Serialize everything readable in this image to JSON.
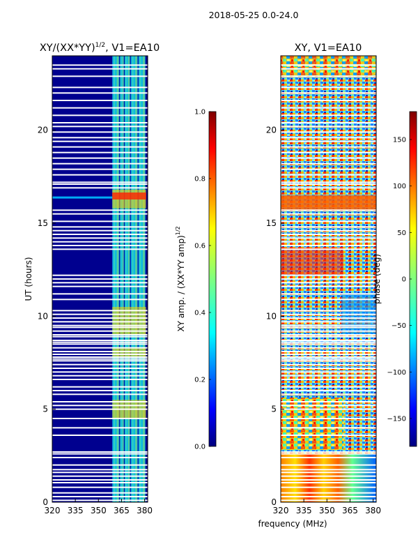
{
  "suptitle": "2018-05-25 0.0-24.0",
  "colors": {
    "background": "#000080",
    "jet": [
      "#00007f",
      "#0000ff",
      "#007fff",
      "#00ffff",
      "#7fff7f",
      "#ffff00",
      "#ff7f00",
      "#ff0000",
      "#7f0000"
    ]
  },
  "chart_data": [
    {
      "type": "heatmap",
      "title": "XY/(XX*YY)^1/2, V1=EA10",
      "title_main": "XY/(XX*YY)",
      "title_sup": "1/2",
      "title_suffix": ", V1=EA10",
      "xlabel": "",
      "ylabel": "UT (hours)",
      "xlim": [
        320,
        382
      ],
      "ylim": [
        0,
        24
      ],
      "xticks": [
        320,
        335,
        350,
        365,
        380
      ],
      "xtick_labels": [
        "320",
        "335",
        "350",
        "365",
        "380"
      ],
      "yticks": [
        0,
        5,
        10,
        15,
        20
      ],
      "ytick_labels": [
        "0",
        "5",
        "10",
        "15",
        "20"
      ],
      "bright_bands_mhz": [
        [
          359,
          364
        ],
        [
          364,
          367
        ],
        [
          367,
          371
        ],
        [
          371,
          376
        ],
        [
          376,
          381
        ]
      ],
      "strong_time_ranges_hours": [
        [
          15.8,
          16.8
        ],
        [
          4.5,
          5.5
        ],
        [
          9.0,
          10.5
        ],
        [
          7.8,
          8.3
        ]
      ],
      "colorbar": {
        "label": "XY amp. / (XX*YY amp)^1/2",
        "label_main": "XY amp. / (XX*YY amp)",
        "label_sup": "1/2",
        "range": [
          0.0,
          1.0
        ],
        "ticks": [
          0.0,
          0.2,
          0.4,
          0.6,
          0.8,
          1.0
        ],
        "tick_labels": [
          "0.0",
          "0.2",
          "0.4",
          "0.6",
          "0.8",
          "1.0"
        ]
      }
    },
    {
      "type": "heatmap",
      "title": "XY, V1=EA10",
      "xlabel": "frequency (MHz)",
      "ylabel": "",
      "xlim": [
        320,
        382
      ],
      "ylim": [
        0,
        24
      ],
      "xticks": [
        320,
        335,
        350,
        365,
        380
      ],
      "xtick_labels": [
        "320",
        "335",
        "350",
        "365",
        "380"
      ],
      "yticks": [
        0,
        5,
        10,
        15,
        20
      ],
      "ytick_labels": [
        "0",
        "5",
        "10",
        "15",
        "20"
      ],
      "colorbar": {
        "label": "phase (deg)",
        "range": [
          -180,
          180
        ],
        "ticks": [
          -150,
          -100,
          -50,
          0,
          50,
          100,
          150
        ],
        "tick_labels": [
          "−150",
          "−100",
          "−50",
          "0",
          "50",
          "100",
          "150"
        ]
      }
    }
  ],
  "flag_gaps_hours": [
    0.1,
    0.3,
    0.5,
    0.8,
    1.05,
    1.2,
    1.4,
    1.6,
    1.75,
    2.0,
    2.4,
    2.6,
    2.7,
    3.6,
    4.0,
    4.5,
    5.0,
    5.2,
    5.4,
    5.8,
    6.0,
    6.2,
    6.6,
    6.8,
    7.0,
    7.2,
    7.4,
    7.6,
    7.7,
    7.8,
    7.95,
    8.1,
    8.3,
    8.5,
    8.6,
    8.7,
    8.9,
    9.0,
    9.2,
    9.4,
    9.5,
    9.7,
    9.9,
    10.1,
    10.3,
    10.9,
    11.2,
    11.6,
    11.8,
    12.0,
    12.2,
    13.6,
    13.8,
    14.0,
    14.2,
    14.4,
    14.6,
    14.8,
    15.1,
    15.5,
    15.7,
    16.9,
    17.1,
    17.2,
    17.6,
    17.9,
    18.2,
    18.5,
    18.8,
    19.1,
    19.4,
    19.6,
    19.9,
    20.2,
    20.4,
    20.8,
    21.2,
    21.6,
    22.0,
    22.3,
    22.9,
    23.3,
    23.5
  ]
}
